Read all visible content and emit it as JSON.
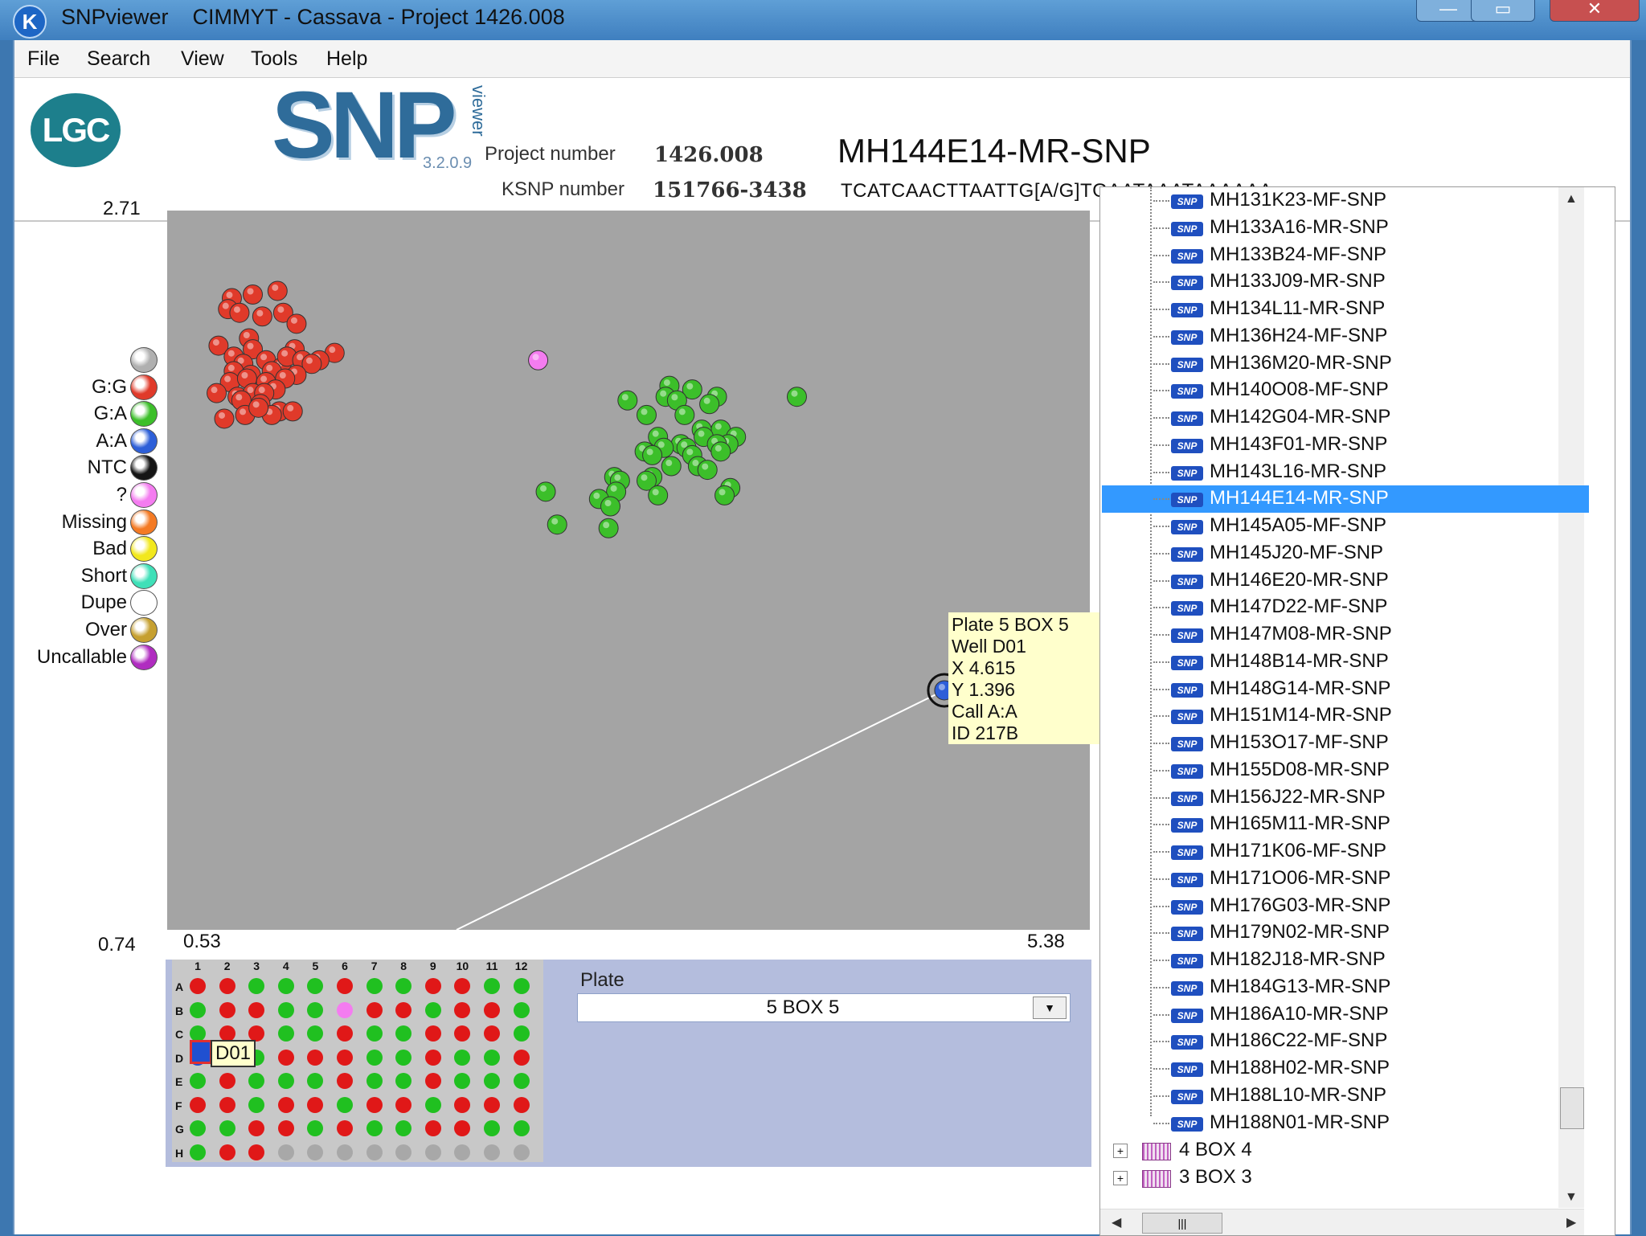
{
  "window": {
    "app_name": "SNPviewer",
    "title": "SNPviewer    CIMMYT - Cassava - Project 1426.008",
    "app_icon": "K"
  },
  "menu": [
    "File",
    "Search",
    "View",
    "Tools",
    "Help"
  ],
  "header": {
    "lgc_logo": "LGC",
    "snp_logo": "SNP",
    "snp_logo_sub": "viewer",
    "version": "3.2.0.9",
    "project_label": "Project number",
    "project_value": "1426.008",
    "ksnp_label": "KSNP number",
    "ksnp_value": "151766-3438",
    "snp_title": "MH144E14-MR-SNP",
    "sequence": "TCATCAACTTAATTG[A/G]TGAATAAATAAAAAA"
  },
  "axes": {
    "y_max": "2.71",
    "y_min": "0.74",
    "x_min": "0.53",
    "x_max": "5.38"
  },
  "legend": [
    {
      "label": "",
      "color": "#b0b0b0"
    },
    {
      "label": "G:G",
      "color": "#e03a2a"
    },
    {
      "label": "G:A",
      "color": "#3cbf2a"
    },
    {
      "label": "A:A",
      "color": "#2d5fd8"
    },
    {
      "label": "NTC",
      "color": "#151515"
    },
    {
      "label": "?",
      "color": "#f47cf0"
    },
    {
      "label": "Missing",
      "color": "#f47a24"
    },
    {
      "label": "Bad",
      "color": "#f2e81e"
    },
    {
      "label": "Short",
      "color": "#3fe0b8"
    },
    {
      "label": "Dupe",
      "color": "#ffffff"
    },
    {
      "label": "Over",
      "color": "#c6a030"
    },
    {
      "label": "Uncallable",
      "color": "#b02cc0"
    }
  ],
  "chart_data": {
    "type": "scatter",
    "xlim": [
      0.53,
      5.38
    ],
    "ylim": [
      0.74,
      2.71
    ],
    "series": [
      {
        "name": "G:G",
        "color": "#e03a2a",
        "points": [
          [
            0.87,
            2.47
          ],
          [
            0.98,
            2.48
          ],
          [
            1.11,
            2.49
          ],
          [
            0.85,
            2.44
          ],
          [
            0.91,
            2.43
          ],
          [
            1.14,
            2.43
          ],
          [
            1.03,
            2.42
          ],
          [
            0.96,
            2.36
          ],
          [
            1.21,
            2.4
          ],
          [
            0.8,
            2.34
          ],
          [
            0.98,
            2.33
          ],
          [
            1.2,
            2.33
          ],
          [
            1.41,
            2.32
          ],
          [
            0.88,
            2.31
          ],
          [
            0.93,
            2.29
          ],
          [
            1.05,
            2.3
          ],
          [
            1.13,
            2.28
          ],
          [
            1.16,
            2.31
          ],
          [
            1.24,
            2.3
          ],
          [
            1.33,
            2.3
          ],
          [
            1.29,
            2.29
          ],
          [
            0.88,
            2.27
          ],
          [
            0.97,
            2.26
          ],
          [
            1.08,
            2.27
          ],
          [
            1.21,
            2.26
          ],
          [
            1.15,
            2.25
          ],
          [
            0.86,
            2.24
          ],
          [
            0.95,
            2.25
          ],
          [
            1.05,
            2.24
          ],
          [
            1.1,
            2.22
          ],
          [
            0.79,
            2.21
          ],
          [
            0.9,
            2.2
          ],
          [
            0.98,
            2.21
          ],
          [
            1.04,
            2.21
          ],
          [
            0.92,
            2.19
          ],
          [
            1.02,
            2.18
          ],
          [
            1.12,
            2.16
          ],
          [
            1.19,
            2.16
          ],
          [
            1.08,
            2.15
          ],
          [
            0.83,
            2.14
          ],
          [
            0.94,
            2.15
          ],
          [
            1.01,
            2.17
          ]
        ]
      },
      {
        "name": "G:A",
        "color": "#3cbf2a",
        "points": [
          [
            3.17,
            2.23
          ],
          [
            3.29,
            2.22
          ],
          [
            3.15,
            2.2
          ],
          [
            3.42,
            2.2
          ],
          [
            3.84,
            2.2
          ],
          [
            3.21,
            2.19
          ],
          [
            3.38,
            2.18
          ],
          [
            2.95,
            2.19
          ],
          [
            3.05,
            2.15
          ],
          [
            3.25,
            2.15
          ],
          [
            3.44,
            2.11
          ],
          [
            3.34,
            2.11
          ],
          [
            3.52,
            2.09
          ],
          [
            3.35,
            2.09
          ],
          [
            3.11,
            2.09
          ],
          [
            3.48,
            2.07
          ],
          [
            3.23,
            2.07
          ],
          [
            3.42,
            2.07
          ],
          [
            3.26,
            2.06
          ],
          [
            3.14,
            2.06
          ],
          [
            3.44,
            2.05
          ],
          [
            3.04,
            2.05
          ],
          [
            3.08,
            2.04
          ],
          [
            3.29,
            2.04
          ],
          [
            3.32,
            2.01
          ],
          [
            3.18,
            2.01
          ],
          [
            3.37,
            2.0
          ],
          [
            3.08,
            1.98
          ],
          [
            3.05,
            1.97
          ],
          [
            2.88,
            1.98
          ],
          [
            2.91,
            1.97
          ],
          [
            2.52,
            1.94
          ],
          [
            3.49,
            1.95
          ],
          [
            3.46,
            1.93
          ],
          [
            2.89,
            1.94
          ],
          [
            3.11,
            1.93
          ],
          [
            2.8,
            1.92
          ],
          [
            2.86,
            1.9
          ],
          [
            2.58,
            1.85
          ],
          [
            2.85,
            1.84
          ]
        ]
      },
      {
        "name": "?",
        "color": "#f47cf0",
        "points": [
          [
            2.48,
            2.3
          ]
        ]
      },
      {
        "name": "A:A",
        "color": "#2d5fd8",
        "points": [
          [
            4.615,
            1.396
          ]
        ]
      }
    ],
    "grid": false
  },
  "tooltip": {
    "plate": "Plate 5 BOX 5",
    "well": "Well D01",
    "x": "X 4.615",
    "y": "Y 1.396",
    "call": "Call A:A",
    "id": "ID 217B"
  },
  "plate_view": {
    "columns": [
      "1",
      "2",
      "3",
      "4",
      "5",
      "6",
      "7",
      "8",
      "9",
      "10",
      "11",
      "12"
    ],
    "rows": [
      "A",
      "B",
      "C",
      "D",
      "E",
      "F",
      "G",
      "H"
    ],
    "wells": [
      "RRGGGRGGRRGG",
      "GRRGGPRRGRRG",
      "GRRGGRGGRRRG",
      "BGGRRRGGRGGR",
      "GRGGGRGGRGGG",
      "RRGRRGRRGRRR",
      "GGRRGRGGRRGG",
      "GRRXXXXXXXXX"
    ],
    "well_colors": {
      "R": "#e01818",
      "G": "#20c020",
      "P": "#f47cf0",
      "X": "#a8a8a8",
      "B": "#2050d0"
    },
    "selected_well": "D01",
    "plate_label": "Plate",
    "plate_value": "5 BOX 5"
  },
  "tree": {
    "items": [
      "MH131K23-MF-SNP",
      "MH133A16-MR-SNP",
      "MH133B24-MF-SNP",
      "MH133J09-MR-SNP",
      "MH134L11-MR-SNP",
      "MH136H24-MF-SNP",
      "MH136M20-MR-SNP",
      "MH140O08-MF-SNP",
      "MH142G04-MR-SNP",
      "MH143F01-MR-SNP",
      "MH143L16-MR-SNP",
      "MH144E14-MR-SNP",
      "MH145A05-MF-SNP",
      "MH145J20-MF-SNP",
      "MH146E20-MR-SNP",
      "MH147D22-MF-SNP",
      "MH147M08-MR-SNP",
      "MH148B14-MR-SNP",
      "MH148G14-MR-SNP",
      "MH151M14-MR-SNP",
      "MH153O17-MF-SNP",
      "MH155D08-MR-SNP",
      "MH156J22-MR-SNP",
      "MH165M11-MR-SNP",
      "MH171K06-MF-SNP",
      "MH171O06-MR-SNP",
      "MH176G03-MR-SNP",
      "MH179N02-MR-SNP",
      "MH182J18-MR-SNP",
      "MH184G13-MR-SNP",
      "MH186A10-MR-SNP",
      "MH186C22-MF-SNP",
      "MH188H02-MR-SNP",
      "MH188L10-MR-SNP",
      "MH188N01-MR-SNP"
    ],
    "selected_index": 11,
    "snp_icon": "SNP",
    "boxes": [
      "4 BOX 4",
      "3 BOX 3"
    ]
  }
}
